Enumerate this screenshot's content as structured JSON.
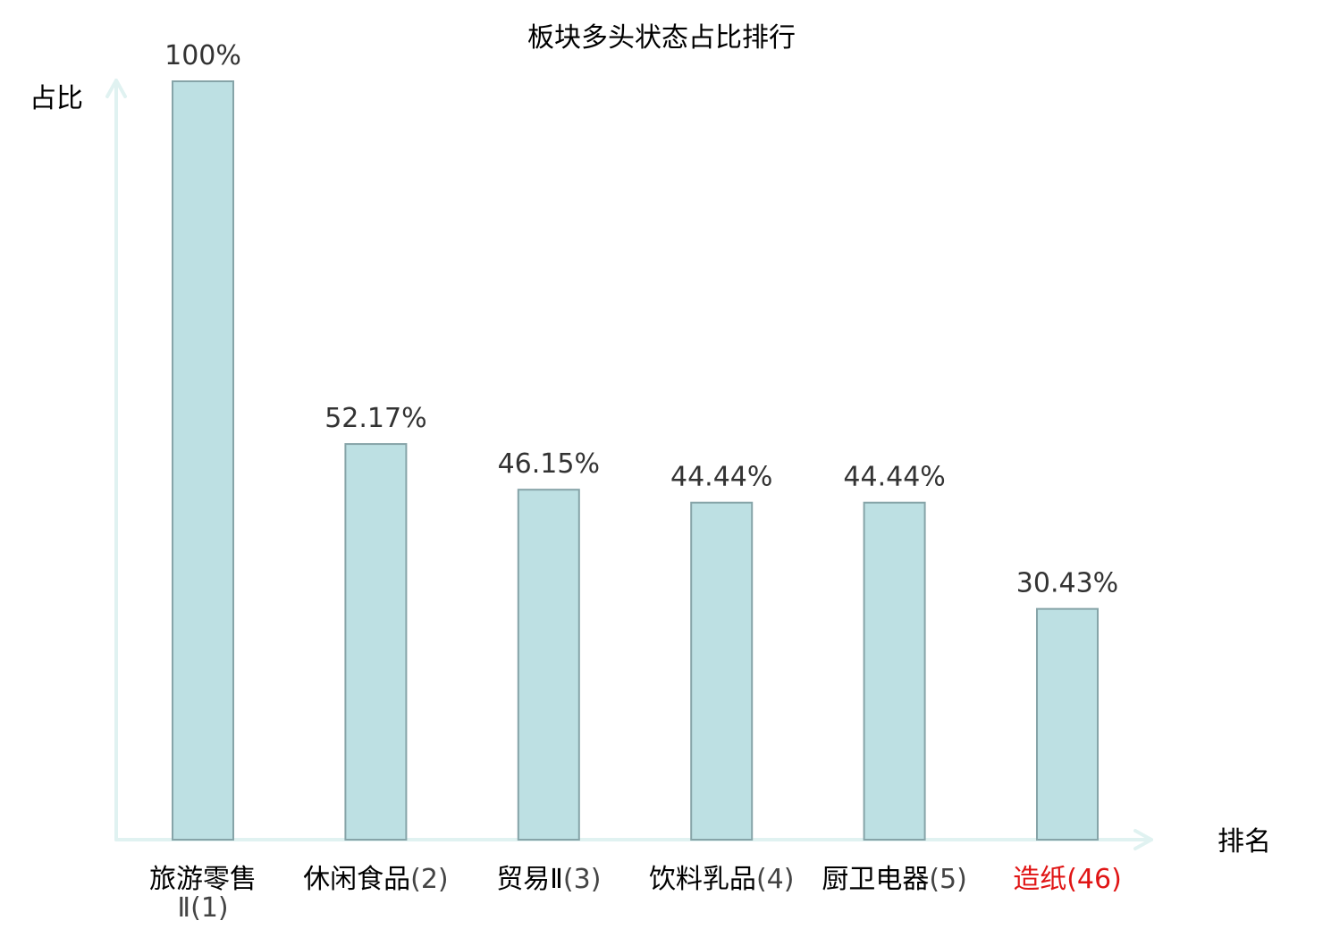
{
  "chart_data": {
    "type": "bar",
    "title": "板块多头状态占比排行",
    "ylabel": "占比",
    "xlabel": "排名",
    "ylim": [
      0,
      100
    ],
    "grid": false,
    "legend": "none",
    "categories": [
      {
        "name": "旅游零售Ⅱ",
        "rank": "(1)",
        "highlight": false
      },
      {
        "name": "休闲食品",
        "rank": "(2)",
        "highlight": false
      },
      {
        "name": "贸易Ⅱ",
        "rank": "(3)",
        "highlight": false
      },
      {
        "name": "饮料乳品",
        "rank": "(4)",
        "highlight": false
      },
      {
        "name": "厨卫电器",
        "rank": "(5)",
        "highlight": false
      },
      {
        "name": "造纸",
        "rank": "(46)",
        "highlight": true
      }
    ],
    "values": [
      100,
      52.17,
      46.15,
      44.44,
      44.44,
      30.43
    ],
    "value_labels": [
      "100%",
      "52.17%",
      "46.15%",
      "44.44%",
      "44.44%",
      "30.43%"
    ],
    "colors": {
      "bar_fill": "#bde0e3",
      "bar_stroke": "#86a4a8",
      "axis": "#e0f2f1",
      "label_text": "#333333",
      "rank_text": "#444444",
      "category_text": "#000000",
      "highlight": "#e01515"
    }
  }
}
